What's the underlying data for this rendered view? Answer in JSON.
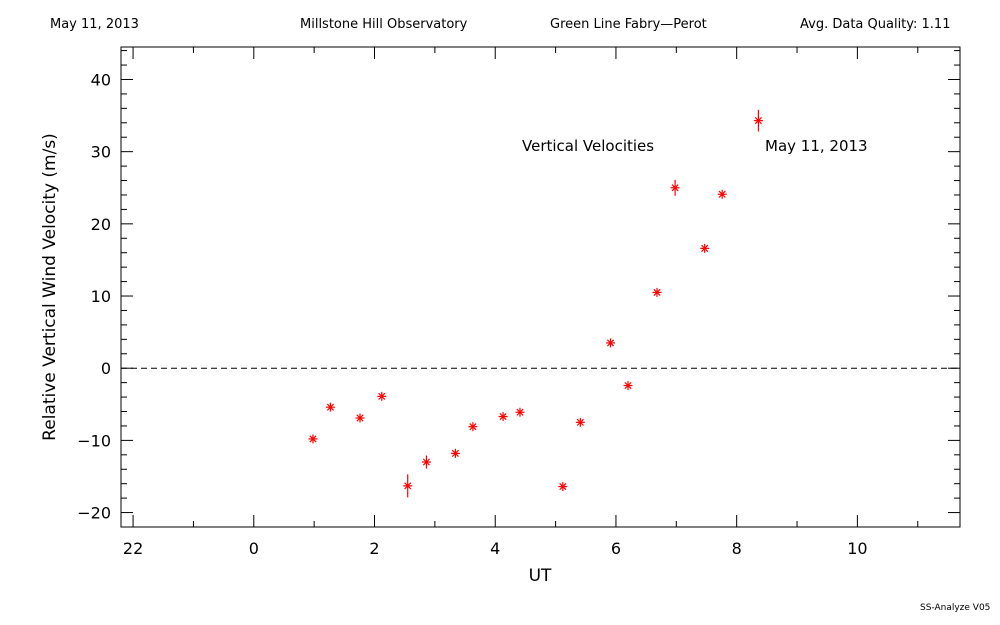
{
  "header": {
    "date": "May 11, 2013",
    "observatory": "Millstone Hill Observatory",
    "instrument": "Green Line Fabry—Perot",
    "quality": "Avg. Data Quality: 1.11"
  },
  "footer": {
    "software": "SS-Analyze V05"
  },
  "colors": {
    "marker": "#ff0000",
    "axis": "#000000",
    "background": "#ffffff"
  },
  "chart_data": {
    "type": "scatter",
    "xlabel": "UT",
    "ylabel": "Relative Vertical Wind Velocity (m/s)",
    "xlim": [
      -26.2,
      -12.3
    ],
    "ylim": [
      -22,
      44.5
    ],
    "x_axis_note": "UT hours; points after midnight shown as hours-24 internally",
    "xticks": [
      {
        "v": -26,
        "label": "22"
      },
      {
        "v": -24,
        "label": "0"
      },
      {
        "v": -22,
        "label": "2"
      },
      {
        "v": -20,
        "label": "4"
      },
      {
        "v": -18,
        "label": "6"
      },
      {
        "v": -16,
        "label": "8"
      },
      {
        "v": -14,
        "label": "10"
      }
    ],
    "yticks": [
      {
        "v": -20,
        "label": "−20"
      },
      {
        "v": -10,
        "label": "−10"
      },
      {
        "v": 0,
        "label": "0"
      },
      {
        "v": 10,
        "label": "10"
      },
      {
        "v": 20,
        "label": "20"
      },
      {
        "v": 30,
        "label": "30"
      },
      {
        "v": 40,
        "label": "40"
      }
    ],
    "annotations": [
      "Vertical Velocities",
      "May 11, 2013"
    ],
    "reference_line_y": 0,
    "series": [
      {
        "points": [
          {
            "x": -23.02,
            "y": -9.8,
            "err": 0.5
          },
          {
            "x": -22.73,
            "y": -5.4,
            "err": 0.5
          },
          {
            "x": -22.24,
            "y": -6.9,
            "err": 0.5
          },
          {
            "x": -21.88,
            "y": -3.9,
            "err": 0.5
          },
          {
            "x": -21.45,
            "y": -16.3,
            "err": 1.6
          },
          {
            "x": -21.14,
            "y": -13.0,
            "err": 0.9
          },
          {
            "x": -20.66,
            "y": -11.8,
            "err": 0.5
          },
          {
            "x": -20.37,
            "y": -8.1,
            "err": 0.5
          },
          {
            "x": -19.87,
            "y": -6.7,
            "err": 0.5
          },
          {
            "x": -19.59,
            "y": -6.1,
            "err": 0.5
          },
          {
            "x": -18.88,
            "y": -16.4,
            "err": 0.5
          },
          {
            "x": -18.59,
            "y": -7.5,
            "err": 0.5
          },
          {
            "x": -18.09,
            "y": 3.5,
            "err": 0.5
          },
          {
            "x": -17.8,
            "y": -2.4,
            "err": 0.5
          },
          {
            "x": -17.32,
            "y": 10.5,
            "err": 0.5
          },
          {
            "x": -17.02,
            "y": 25.0,
            "err": 1.1
          },
          {
            "x": -16.53,
            "y": 16.6,
            "err": 0.5
          },
          {
            "x": -16.24,
            "y": 24.1,
            "err": 0.5
          },
          {
            "x": -15.64,
            "y": 34.3,
            "err": 1.5
          }
        ]
      }
    ]
  }
}
